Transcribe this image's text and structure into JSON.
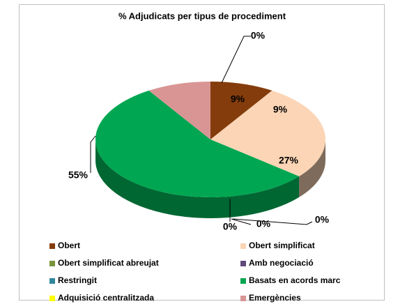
{
  "chart_data": {
    "type": "pie",
    "title": "% Adjudicats per tipus de procediment",
    "categories": [
      "Obert",
      "Obert simplificat",
      "Obert simplificat abreujat",
      "Amb negociació",
      "Restringit",
      "Basats en acords marc",
      "Adquisició centralitzada",
      "Emergències"
    ],
    "values": [
      9,
      27,
      0,
      0,
      0,
      55,
      0,
      9
    ],
    "value_labels": [
      "9%",
      "27%",
      "0%",
      "0%",
      "0%",
      "55%",
      "0%",
      "9%"
    ],
    "colors": [
      "#843c0c",
      "#fbd5b5",
      "#77933c",
      "#604a7b",
      "#31859c",
      "#00a651",
      "#ffff00",
      "#d99594"
    ]
  }
}
